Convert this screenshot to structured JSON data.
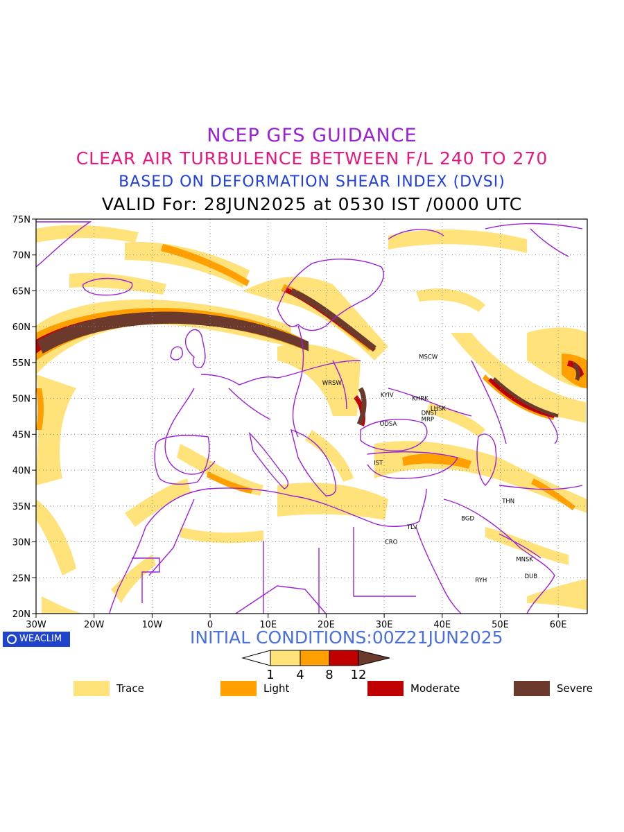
{
  "titles": {
    "line1": "NCEP GFS GUIDANCE",
    "line2": "CLEAR AIR TURBULENCE BETWEEN F/L 240 TO 270",
    "line3": "BASED ON DEFORMATION SHEAR INDEX (DVSI)",
    "line4": "VALID For: 28JUN2025 at 0530 IST /0000 UTC"
  },
  "map": {
    "lon_range": [
      -30,
      65
    ],
    "lat_range": [
      20,
      75
    ],
    "lon_ticks": [
      "30W",
      "20W",
      "10W",
      "0",
      "10E",
      "20E",
      "30E",
      "40E",
      "50E",
      "60E"
    ],
    "lat_ticks": [
      "75N",
      "70N",
      "65N",
      "60N",
      "55N",
      "50N",
      "45N",
      "40N",
      "35N",
      "30N",
      "25N",
      "20N"
    ],
    "gridlines": true,
    "cities": [
      {
        "name": "MSCW",
        "lon": 37.6,
        "lat": 55.8
      },
      {
        "name": "WRSW",
        "lon": 21.0,
        "lat": 52.2
      },
      {
        "name": "KYIV",
        "lon": 30.5,
        "lat": 50.5
      },
      {
        "name": "KHRK",
        "lon": 36.2,
        "lat": 50.0
      },
      {
        "name": "LHSK",
        "lon": 39.3,
        "lat": 48.6
      },
      {
        "name": "DNST",
        "lon": 37.8,
        "lat": 48.0
      },
      {
        "name": "MRP",
        "lon": 37.5,
        "lat": 47.1
      },
      {
        "name": "ODSA",
        "lon": 30.7,
        "lat": 46.5
      },
      {
        "name": "IST",
        "lon": 29.0,
        "lat": 41.0
      },
      {
        "name": "THN",
        "lon": 51.4,
        "lat": 35.7
      },
      {
        "name": "BGD",
        "lon": 44.4,
        "lat": 33.3
      },
      {
        "name": "TLV",
        "lon": 34.8,
        "lat": 32.1
      },
      {
        "name": "CRO",
        "lon": 31.2,
        "lat": 30.0
      },
      {
        "name": "MNSK",
        "lon": 54.2,
        "lat": 27.6
      },
      {
        "name": "DUB",
        "lon": 55.3,
        "lat": 25.2
      },
      {
        "name": "RYH",
        "lon": 46.7,
        "lat": 24.7
      }
    ]
  },
  "branding": {
    "label": "WEACLIM",
    "icon": "circle-logo-icon"
  },
  "initial_conditions": "INITIAL CONDITIONS:00Z21JUN2025",
  "colorbar": {
    "ticks": [
      "1",
      "4",
      "8",
      "12"
    ],
    "colors": [
      "#ffffff",
      "#ffe27a",
      "#ffa000",
      "#c00000",
      "#6b3a2c"
    ]
  },
  "legend": [
    {
      "label": "Trace",
      "color": "#ffe27a"
    },
    {
      "label": "Light",
      "color": "#ffa000"
    },
    {
      "label": "Moderate",
      "color": "#c00000"
    },
    {
      "label": "Severe",
      "color": "#6b3a2c"
    }
  ],
  "colors": {
    "coast": "#9a1fd8",
    "trace": "#ffe27a",
    "light": "#ffa000",
    "moderate": "#c00000",
    "severe": "#6b3a2c"
  }
}
